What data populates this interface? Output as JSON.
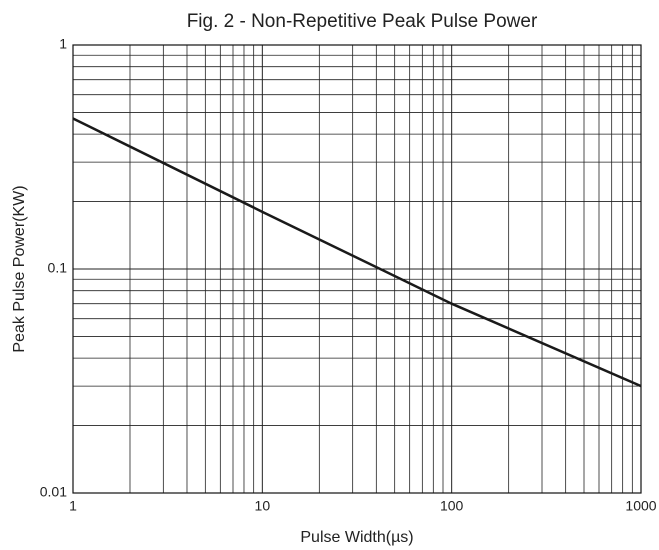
{
  "chart_data": {
    "type": "line",
    "title": "Fig. 2 - Non-Repetitive Peak Pulse Power",
    "xlabel": "Pulse Width(µs)",
    "ylabel": "Peak Pulse Power(KW)",
    "x": [
      1,
      10,
      100,
      1000
    ],
    "series": [
      {
        "name": "Peak Pulse Power",
        "color": "#1a1a1a",
        "values": [
          0.47,
          0.18,
          0.07,
          0.03
        ]
      }
    ],
    "xlim": [
      1,
      1000
    ],
    "ylim": [
      0.01,
      1
    ],
    "xticks": [
      1,
      10,
      100,
      1000
    ],
    "yticks": [
      0.01,
      0.1,
      1
    ],
    "xscale": "log",
    "yscale": "log",
    "grid": true
  }
}
